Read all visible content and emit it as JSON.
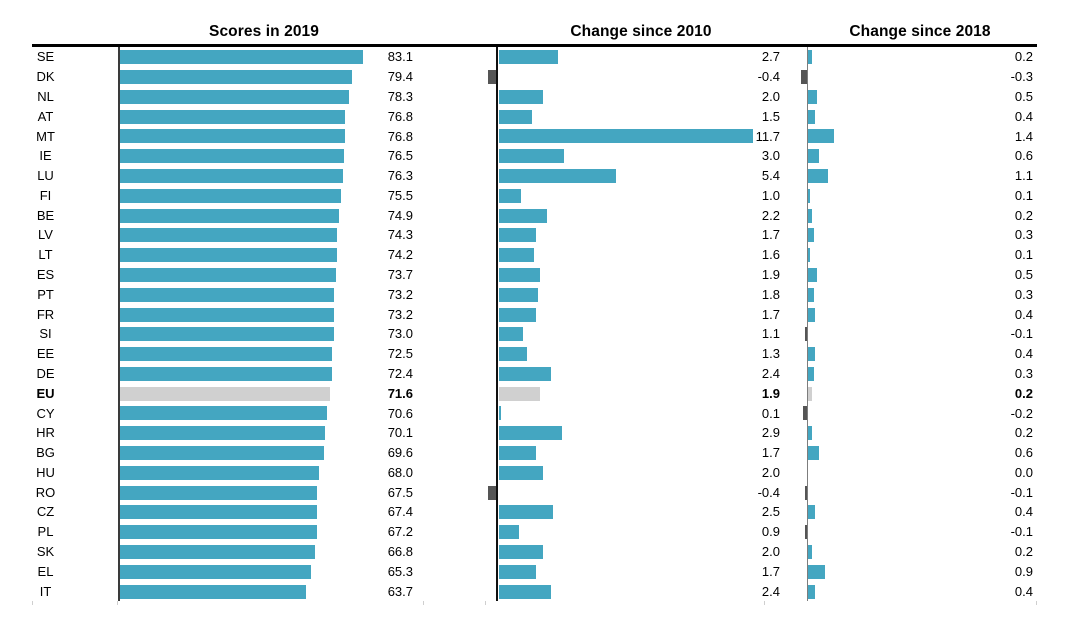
{
  "chart_data": {
    "type": "bar",
    "orientation": "horizontal",
    "legend": "none",
    "grid": false,
    "value_decimals": 1,
    "panel_titles": [
      "Scores in 2019",
      "Change since 2010",
      "Change since 2018"
    ],
    "categories": [
      "SE",
      "DK",
      "NL",
      "AT",
      "MT",
      "IE",
      "LU",
      "FI",
      "BE",
      "LV",
      "LT",
      "ES",
      "PT",
      "FR",
      "SI",
      "EE",
      "DE",
      "EU",
      "CY",
      "HR",
      "BG",
      "HU",
      "RO",
      "CZ",
      "PL",
      "SK",
      "EL",
      "IT"
    ],
    "highlight_category": "EU",
    "series": [
      {
        "name": "Scores in 2019",
        "axis_range": [
          0,
          100
        ],
        "values": [
          83.1,
          79.4,
          78.3,
          76.8,
          76.8,
          76.5,
          76.3,
          75.5,
          74.9,
          74.3,
          74.2,
          73.7,
          73.2,
          73.2,
          73.0,
          72.5,
          72.4,
          71.6,
          70.6,
          70.1,
          69.6,
          68.0,
          67.5,
          67.4,
          67.2,
          66.8,
          65.3,
          63.7
        ]
      },
      {
        "name": "Change since 2010",
        "axis_range": [
          0,
          12
        ],
        "values": [
          2.7,
          -0.4,
          2.0,
          1.5,
          11.7,
          3.0,
          5.4,
          1.0,
          2.2,
          1.7,
          1.6,
          1.9,
          1.8,
          1.7,
          1.1,
          1.3,
          2.4,
          1.9,
          0.1,
          2.9,
          1.7,
          2.0,
          -0.4,
          2.5,
          0.9,
          2.0,
          1.7,
          2.4
        ]
      },
      {
        "name": "Change since 2018",
        "axis_range": [
          0,
          12
        ],
        "values": [
          0.2,
          -0.3,
          0.5,
          0.4,
          1.4,
          0.6,
          1.1,
          0.1,
          0.2,
          0.3,
          0.1,
          0.5,
          0.3,
          0.4,
          -0.1,
          0.4,
          0.3,
          0.2,
          -0.2,
          0.2,
          0.6,
          0.0,
          -0.1,
          0.4,
          -0.1,
          0.2,
          0.9,
          0.4
        ]
      }
    ],
    "colors": {
      "positive_bar": "#44a6c1",
      "negative_bar": "#555555",
      "highlight_bar": "#d0d0d0",
      "header_rule": "#000000",
      "text": "#000000"
    }
  }
}
